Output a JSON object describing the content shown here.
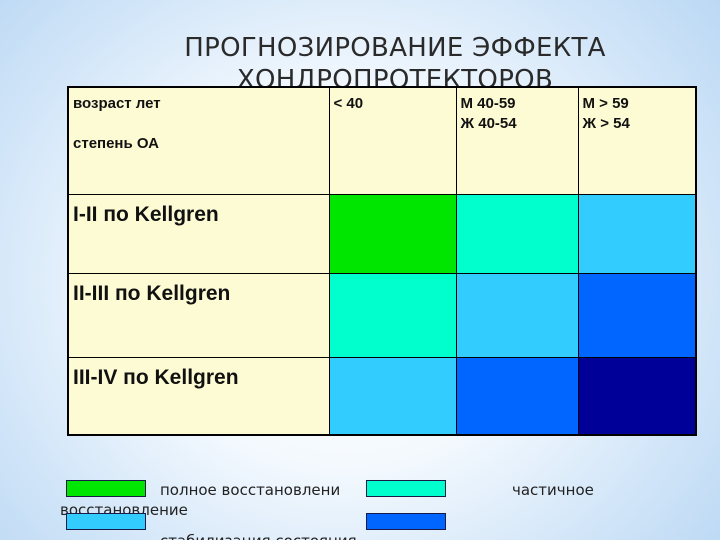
{
  "title": "ПРОГНОЗИРОВАНИЕ ЭФФЕКТА ХОНДРОПРОТЕКТОРОВ",
  "table": {
    "corner": {
      "line1": "возраст лет",
      "line2": "степень ОА"
    },
    "columns": [
      {
        "line1": "< 40",
        "line2": ""
      },
      {
        "line1": "М 40-59",
        "line2": "Ж 40-54"
      },
      {
        "line1": "М > 59",
        "line2": "Ж > 54"
      }
    ],
    "rows": [
      {
        "label": "I-II по Kellgren",
        "colors": [
          "#00e600",
          "#00ffcc",
          "#33ccff"
        ]
      },
      {
        "label": "II-III по Kellgren",
        "colors": [
          "#00ffcc",
          "#33ccff",
          "#0066ff"
        ]
      },
      {
        "label": "III-IV по Kellgren",
        "colors": [
          "#33ccff",
          "#0066ff",
          "#000099"
        ]
      }
    ]
  },
  "legend": [
    {
      "color": "#00e600",
      "text": "полное восстановлени"
    },
    {
      "color": "#00ffcc",
      "text": "частичное"
    },
    {
      "color": "#33ccff",
      "text": "восстановление"
    },
    {
      "color": "#0066ff",
      "text": ""
    },
    {
      "text": "стабилизация состояния"
    }
  ]
}
